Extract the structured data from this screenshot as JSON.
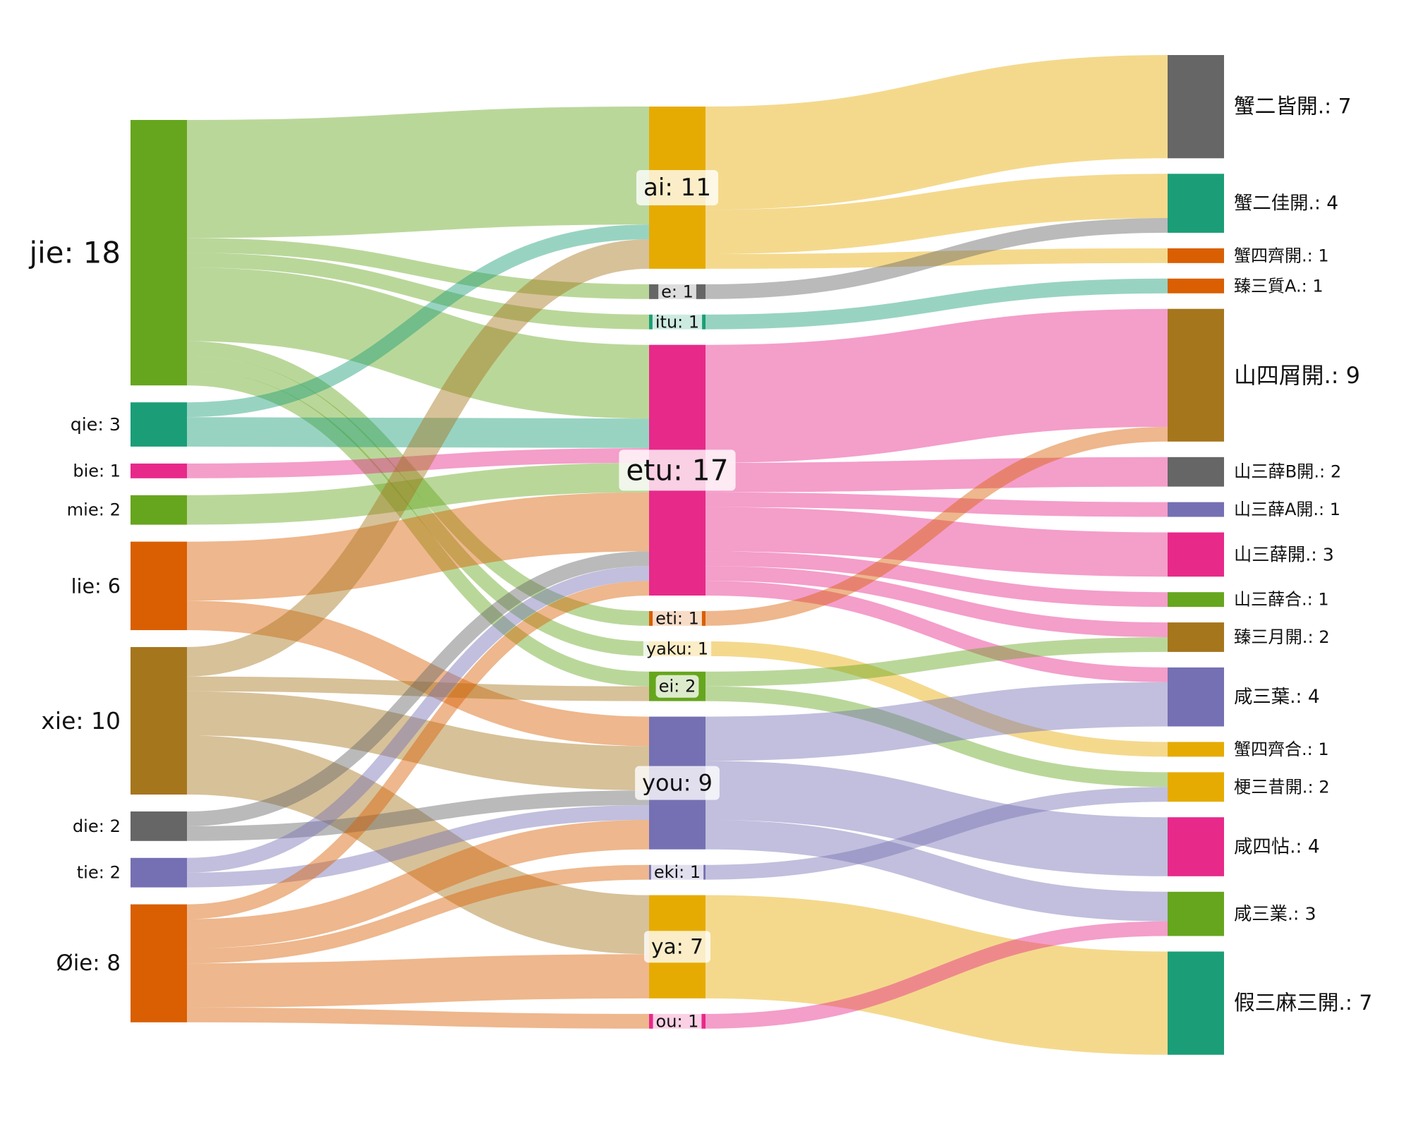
{
  "colors": {
    "green": "#66a61e",
    "teal": "#1b9e77",
    "magenta": "#e7298a",
    "orange": "#d95f02",
    "brown": "#a6761d",
    "gray": "#666666",
    "purple": "#7570b3",
    "yellow": "#e6ab02"
  },
  "chart_data": {
    "type": "sankey",
    "columns": [
      [
        {
          "id": "jie",
          "label": "jie: 18",
          "value": 18,
          "color": "green"
        },
        {
          "id": "qie",
          "label": "qie: 3",
          "value": 3,
          "color": "teal"
        },
        {
          "id": "bie",
          "label": "bie: 1",
          "value": 1,
          "color": "magenta"
        },
        {
          "id": "mie",
          "label": "mie: 2",
          "value": 2,
          "color": "green"
        },
        {
          "id": "lie",
          "label": "lie: 6",
          "value": 6,
          "color": "orange"
        },
        {
          "id": "xie",
          "label": "xie: 10",
          "value": 10,
          "color": "brown"
        },
        {
          "id": "die",
          "label": "die: 2",
          "value": 2,
          "color": "gray"
        },
        {
          "id": "tie",
          "label": "tie: 2",
          "value": 2,
          "color": "purple"
        },
        {
          "id": "oie",
          "label": "Øie: 8",
          "value": 8,
          "color": "orange"
        }
      ],
      [
        {
          "id": "ai",
          "label": "ai: 11",
          "value": 11,
          "color": "yellow"
        },
        {
          "id": "e",
          "label": "e: 1",
          "value": 1,
          "color": "gray"
        },
        {
          "id": "itu",
          "label": "itu: 1",
          "value": 1,
          "color": "teal"
        },
        {
          "id": "etu",
          "label": "etu: 17",
          "value": 17,
          "color": "magenta"
        },
        {
          "id": "eti",
          "label": "eti: 1",
          "value": 1,
          "color": "orange"
        },
        {
          "id": "yaku",
          "label": "yaku: 1",
          "value": 1,
          "color": "yellow"
        },
        {
          "id": "ei",
          "label": "ei: 2",
          "value": 2,
          "color": "green"
        },
        {
          "id": "you",
          "label": "you: 9",
          "value": 9,
          "color": "purple"
        },
        {
          "id": "eki",
          "label": "eki: 1",
          "value": 1,
          "color": "purple"
        },
        {
          "id": "ya",
          "label": "ya: 7",
          "value": 7,
          "color": "yellow"
        },
        {
          "id": "ou",
          "label": "ou: 1",
          "value": 1,
          "color": "magenta"
        }
      ],
      [
        {
          "id": "t1",
          "label": "蟹二皆開.: 7",
          "value": 7,
          "color": "gray"
        },
        {
          "id": "t2",
          "label": "蟹二佳開.: 4",
          "value": 4,
          "color": "teal"
        },
        {
          "id": "t3",
          "label": "蟹四齊開.: 1",
          "value": 1,
          "color": "orange"
        },
        {
          "id": "t4",
          "label": "臻三質A.: 1",
          "value": 1,
          "color": "orange"
        },
        {
          "id": "t5",
          "label": "山四屑開.: 9",
          "value": 9,
          "color": "brown"
        },
        {
          "id": "t6",
          "label": "山三薛B開.: 2",
          "value": 2,
          "color": "gray"
        },
        {
          "id": "t7",
          "label": "山三薛A開.: 1",
          "value": 1,
          "color": "purple"
        },
        {
          "id": "t8",
          "label": "山三薛開.: 3",
          "value": 3,
          "color": "magenta"
        },
        {
          "id": "t9",
          "label": "山三薛合.: 1",
          "value": 1,
          "color": "green"
        },
        {
          "id": "t10",
          "label": "臻三月開.: 2",
          "value": 2,
          "color": "brown"
        },
        {
          "id": "t11",
          "label": "咸三葉.: 4",
          "value": 4,
          "color": "purple"
        },
        {
          "id": "t12",
          "label": "蟹四齊合.: 1",
          "value": 1,
          "color": "yellow"
        },
        {
          "id": "t13",
          "label": "梗三昔開.: 2",
          "value": 2,
          "color": "yellow"
        },
        {
          "id": "t14",
          "label": "咸四怗.: 4",
          "value": 4,
          "color": "magenta"
        },
        {
          "id": "t15",
          "label": "咸三業.: 3",
          "value": 3,
          "color": "green"
        },
        {
          "id": "t16",
          "label": "假三麻三開.: 7",
          "value": 7,
          "color": "teal"
        }
      ]
    ],
    "links": [
      {
        "source": "jie",
        "target": "ai",
        "value": 8
      },
      {
        "source": "jie",
        "target": "e",
        "value": 1
      },
      {
        "source": "jie",
        "target": "itu",
        "value": 1
      },
      {
        "source": "jie",
        "target": "etu",
        "value": 5
      },
      {
        "source": "jie",
        "target": "eti",
        "value": 1
      },
      {
        "source": "jie",
        "target": "yaku",
        "value": 1
      },
      {
        "source": "jie",
        "target": "ei",
        "value": 1
      },
      {
        "source": "qie",
        "target": "ai",
        "value": 1
      },
      {
        "source": "qie",
        "target": "etu",
        "value": 2
      },
      {
        "source": "bie",
        "target": "etu",
        "value": 1
      },
      {
        "source": "mie",
        "target": "etu",
        "value": 2
      },
      {
        "source": "lie",
        "target": "etu",
        "value": 4
      },
      {
        "source": "lie",
        "target": "you",
        "value": 2
      },
      {
        "source": "xie",
        "target": "ai",
        "value": 2
      },
      {
        "source": "xie",
        "target": "ei",
        "value": 1
      },
      {
        "source": "xie",
        "target": "you",
        "value": 3
      },
      {
        "source": "xie",
        "target": "ya",
        "value": 4
      },
      {
        "source": "die",
        "target": "etu",
        "value": 1
      },
      {
        "source": "die",
        "target": "you",
        "value": 1
      },
      {
        "source": "tie",
        "target": "etu",
        "value": 1
      },
      {
        "source": "tie",
        "target": "you",
        "value": 1
      },
      {
        "source": "oie",
        "target": "etu",
        "value": 1
      },
      {
        "source": "oie",
        "target": "you",
        "value": 2
      },
      {
        "source": "oie",
        "target": "eki",
        "value": 1
      },
      {
        "source": "oie",
        "target": "ya",
        "value": 3
      },
      {
        "source": "oie",
        "target": "ou",
        "value": 1
      },
      {
        "source": "ai",
        "target": "t1",
        "value": 7
      },
      {
        "source": "ai",
        "target": "t2",
        "value": 3
      },
      {
        "source": "ai",
        "target": "t3",
        "value": 1
      },
      {
        "source": "e",
        "target": "t2",
        "value": 1
      },
      {
        "source": "itu",
        "target": "t4",
        "value": 1
      },
      {
        "source": "etu",
        "target": "t5",
        "value": 8
      },
      {
        "source": "etu",
        "target": "t6",
        "value": 2
      },
      {
        "source": "etu",
        "target": "t7",
        "value": 1
      },
      {
        "source": "etu",
        "target": "t8",
        "value": 3
      },
      {
        "source": "etu",
        "target": "t9",
        "value": 1
      },
      {
        "source": "etu",
        "target": "t10",
        "value": 1
      },
      {
        "source": "etu",
        "target": "t11",
        "value": 1
      },
      {
        "source": "eti",
        "target": "t5",
        "value": 1
      },
      {
        "source": "yaku",
        "target": "t12",
        "value": 1
      },
      {
        "source": "ei",
        "target": "t10",
        "value": 1
      },
      {
        "source": "ei",
        "target": "t13",
        "value": 1
      },
      {
        "source": "you",
        "target": "t11",
        "value": 3
      },
      {
        "source": "you",
        "target": "t14",
        "value": 4
      },
      {
        "source": "you",
        "target": "t15",
        "value": 2
      },
      {
        "source": "eki",
        "target": "t13",
        "value": 1
      },
      {
        "source": "ya",
        "target": "t16",
        "value": 7
      },
      {
        "source": "ou",
        "target": "t15",
        "value": 1
      }
    ]
  }
}
